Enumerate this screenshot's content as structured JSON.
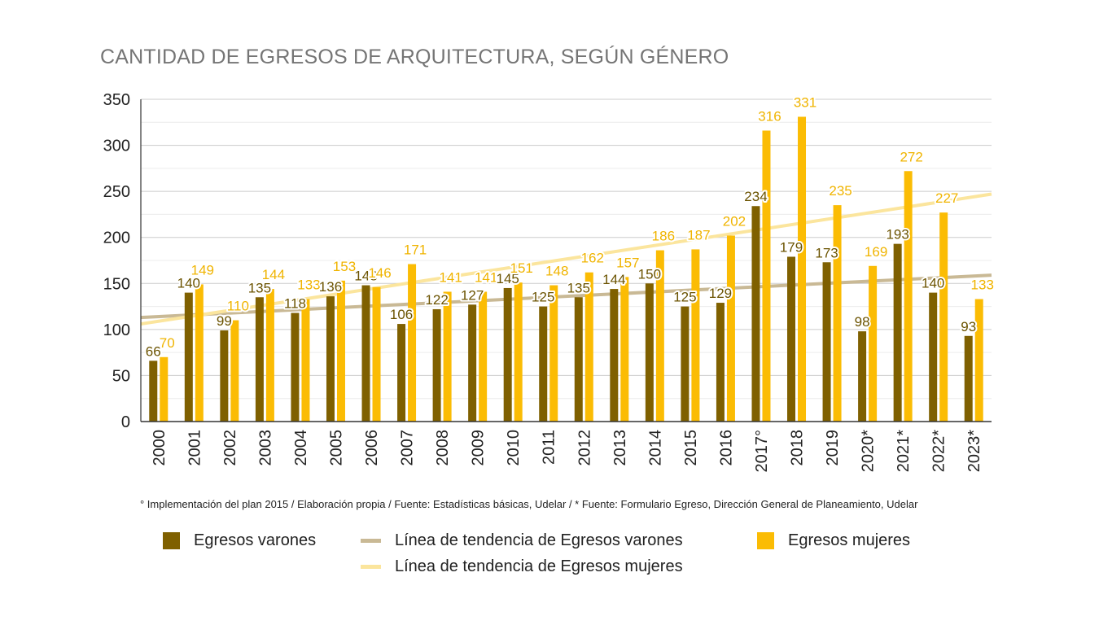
{
  "chart_data": {
    "type": "bar",
    "title": "CANTIDAD DE EGRESOS DE ARQUITECTURA, SEGÚN GÉNERO",
    "categories": [
      "2000",
      "2001",
      "2002",
      "2003",
      "2004",
      "2005",
      "2006",
      "2007",
      "2008",
      "2009",
      "2010",
      "2011",
      "2012",
      "2013",
      "2014",
      "2015",
      "2016",
      "2017°",
      "2018",
      "2019",
      "2020*",
      "2021*",
      "2022*",
      "2023*"
    ],
    "series": [
      {
        "name": "Egresos varones",
        "color": "#7f6000",
        "values": [
          66,
          140,
          99,
          135,
          118,
          136,
          148,
          106,
          122,
          127,
          145,
          125,
          135,
          144,
          150,
          125,
          129,
          234,
          179,
          173,
          98,
          193,
          140,
          93
        ]
      },
      {
        "name": "Egresos mujeres",
        "color": "#fbbc04",
        "values": [
          70,
          149,
          110,
          144,
          133,
          153,
          146,
          171,
          141,
          141,
          151,
          148,
          162,
          157,
          186,
          187,
          202,
          316,
          331,
          235,
          169,
          272,
          227,
          133
        ]
      }
    ],
    "trendlines": [
      {
        "name": "Línea de tendencia de Egresos varones",
        "color": "#c9b995",
        "start": 113,
        "end": 159
      },
      {
        "name": "Línea de tendencia de Egresos mujeres",
        "color": "#fbe59d",
        "start": 106,
        "end": 247
      }
    ],
    "ylim": [
      0,
      350
    ],
    "yticks": [
      0,
      50,
      100,
      150,
      200,
      250,
      300,
      350
    ],
    "grid": true,
    "legend_position": "bottom",
    "xlabel": "",
    "ylabel": ""
  },
  "footnote": "° Implementación del plan 2015 / Elaboración propia / Fuente: Estadísticas básicas, Udelar / * Fuente: Formulario Egreso, Dirección General de Planeamiento, Udelar"
}
